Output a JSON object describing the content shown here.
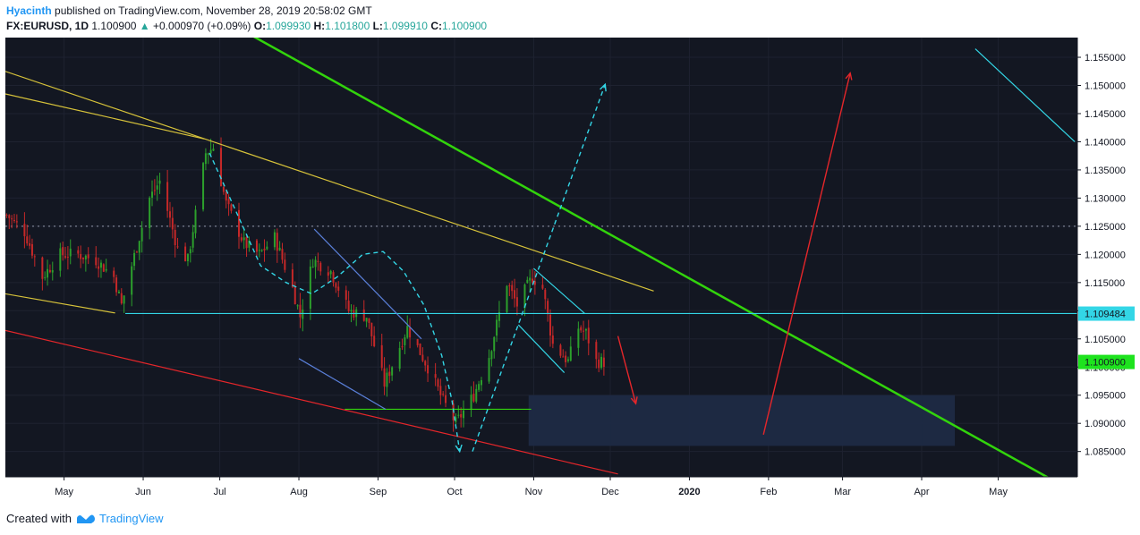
{
  "header": {
    "author": "Hyacinth",
    "published": "published on TradingView.com, November 28, 2019 20:58:02 GMT",
    "symbol": "FX:EURUSD, 1D",
    "last_price": "1.100900",
    "change_arrow": "▲",
    "change": "+0.000970 (+0.09%)",
    "o_label": "O:",
    "o_value": "1.099930",
    "h_label": "H:",
    "h_value": "1.101800",
    "l_label": "L:",
    "l_value": "1.099910",
    "c_label": "C:",
    "c_value": "1.100900"
  },
  "footer": {
    "created": "Created with",
    "brand": "TradingView",
    "logo_icon": "tradingview-logo-icon"
  },
  "colors": {
    "background": "#131722",
    "grid": "#1e2230",
    "bull": "#26a69a",
    "bear": "#ef5350",
    "bull_candle": "#2ca02c",
    "bear_candle": "#c62828",
    "green_trend": "#32d40c",
    "cyan": "#33d6e6",
    "yellow": "#d6c23a",
    "red": "#e5262a",
    "blue": "#5a7fd8",
    "zone": "#1d2a44",
    "current_price": "#1ee31e"
  },
  "chart_data": {
    "type": "candlestick",
    "symbol": "EURUSD",
    "timeframe": "1D",
    "ylim": [
      1.0805,
      1.1585
    ],
    "x_dates": [
      "2019-04-08",
      "2020-06-01"
    ],
    "y_ticks": [
      "1.155000",
      "1.150000",
      "1.145000",
      "1.140000",
      "1.135000",
      "1.130000",
      "1.125000",
      "1.120000",
      "1.115000",
      "1.110000",
      "1.105000",
      "1.100000",
      "1.095000",
      "1.090000",
      "1.085000"
    ],
    "x_ticks": [
      {
        "label": "May",
        "date": "2019-05-01"
      },
      {
        "label": "Jun",
        "date": "2019-06-01"
      },
      {
        "label": "Jul",
        "date": "2019-07-01"
      },
      {
        "label": "Aug",
        "date": "2019-08-01"
      },
      {
        "label": "Sep",
        "date": "2019-09-01"
      },
      {
        "label": "Oct",
        "date": "2019-10-01"
      },
      {
        "label": "Nov",
        "date": "2019-11-01"
      },
      {
        "label": "Dec",
        "date": "2019-12-01"
      },
      {
        "label": "2020",
        "date": "2020-01-01"
      },
      {
        "label": "Feb",
        "date": "2020-02-01"
      },
      {
        "label": "Mar",
        "date": "2020-03-01"
      },
      {
        "label": "Apr",
        "date": "2020-04-01"
      },
      {
        "label": "May",
        "date": "2020-05-01"
      }
    ],
    "price_path": [
      [
        "2019-04-08",
        1.127
      ],
      [
        "2019-04-15",
        1.124
      ],
      [
        "2019-04-22",
        1.116
      ],
      [
        "2019-04-29",
        1.12
      ],
      [
        "2019-05-06",
        1.12
      ],
      [
        "2019-05-13",
        1.119
      ],
      [
        "2019-05-20",
        1.116
      ],
      [
        "2019-05-23",
        1.111
      ],
      [
        "2019-05-27",
        1.118
      ],
      [
        "2019-06-03",
        1.13
      ],
      [
        "2019-06-07",
        1.133
      ],
      [
        "2019-06-14",
        1.121
      ],
      [
        "2019-06-18",
        1.119
      ],
      [
        "2019-06-25",
        1.138
      ],
      [
        "2019-06-28",
        1.139
      ],
      [
        "2019-07-03",
        1.129
      ],
      [
        "2019-07-10",
        1.122
      ],
      [
        "2019-07-16",
        1.12
      ],
      [
        "2019-07-22",
        1.123
      ],
      [
        "2019-07-29",
        1.114
      ],
      [
        "2019-08-01",
        1.109
      ],
      [
        "2019-08-06",
        1.119
      ],
      [
        "2019-08-13",
        1.117
      ],
      [
        "2019-08-20",
        1.11
      ],
      [
        "2019-08-27",
        1.109
      ],
      [
        "2019-09-03",
        1.097
      ],
      [
        "2019-09-12",
        1.107
      ],
      [
        "2019-09-20",
        1.1
      ],
      [
        "2019-09-26",
        1.094
      ],
      [
        "2019-10-01",
        1.09
      ],
      [
        "2019-10-08",
        1.095
      ],
      [
        "2019-10-14",
        1.102
      ],
      [
        "2019-10-21",
        1.115
      ],
      [
        "2019-10-25",
        1.111
      ],
      [
        "2019-10-31",
        1.116
      ],
      [
        "2019-11-04",
        1.114
      ],
      [
        "2019-11-08",
        1.104
      ],
      [
        "2019-11-14",
        1.101
      ],
      [
        "2019-11-18",
        1.107
      ],
      [
        "2019-11-21",
        1.106
      ],
      [
        "2019-11-25",
        1.101
      ],
      [
        "2019-11-28",
        1.1009
      ]
    ],
    "price_lines": [
      {
        "label": "1.109484",
        "price": 1.109484,
        "color": "#33d6e6"
      },
      {
        "label": "1.100900",
        "price": 1.1009,
        "color": "#1ee31e"
      }
    ],
    "dotted_level": 1.125,
    "drawings": [
      {
        "name": "green-trendline",
        "color": "#32d40c",
        "points": [
          [
            "2019-06-12",
            1.1668
          ],
          [
            "2020-05-22",
            1.08
          ]
        ]
      },
      {
        "name": "yellow-trendline-upper",
        "color": "#d6c23a",
        "points": [
          [
            "2019-04-08",
            1.1485
          ],
          [
            "2019-06-25",
            1.1405
          ]
        ]
      },
      {
        "name": "yellow-trendline-main",
        "color": "#d6c23a",
        "points": [
          [
            "2019-04-08",
            1.1525
          ],
          [
            "2019-12-18",
            1.1135
          ]
        ]
      },
      {
        "name": "yellow-support-line",
        "color": "#d6c23a",
        "points": [
          [
            "2019-04-08",
            1.113
          ],
          [
            "2019-05-21",
            1.1096
          ]
        ]
      },
      {
        "name": "red-channel-line",
        "color": "#e5262a",
        "points": [
          [
            "2019-04-08",
            1.1065
          ],
          [
            "2019-12-04",
            1.081
          ]
        ]
      },
      {
        "name": "cyan-channel-line",
        "color": "#33d6e6",
        "points": [
          [
            "2020-04-22",
            1.1565
          ],
          [
            "2020-05-31",
            1.14
          ]
        ]
      },
      {
        "name": "cyan-resistance-line",
        "color": "#33d6e6",
        "points": [
          [
            "2019-05-25",
            1.1095
          ],
          [
            "2020-06-01",
            1.1095
          ]
        ]
      },
      {
        "name": "green-support-line",
        "color": "#32d40c",
        "points": [
          [
            "2019-08-19",
            1.0925
          ],
          [
            "2019-10-31",
            1.0925
          ]
        ]
      },
      {
        "name": "blue-line-1",
        "color": "#5a7fd8",
        "points": [
          [
            "2019-08-07",
            1.1245
          ],
          [
            "2019-09-18",
            1.105
          ]
        ]
      },
      {
        "name": "blue-line-2",
        "color": "#5a7fd8",
        "points": [
          [
            "2019-08-01",
            1.1015
          ],
          [
            "2019-09-04",
            1.0925
          ]
        ]
      },
      {
        "name": "cyan-wedge-upper",
        "color": "#33d6e6",
        "points": [
          [
            "2019-11-01",
            1.1175
          ],
          [
            "2019-11-21",
            1.1095
          ]
        ]
      },
      {
        "name": "cyan-wedge-lower",
        "color": "#33d6e6",
        "points": [
          [
            "2019-10-26",
            1.1075
          ],
          [
            "2019-11-13",
            1.099
          ]
        ]
      }
    ],
    "projections": [
      {
        "name": "dashed-path-projection",
        "color": "#33d6e6",
        "style": "dashed",
        "points": [
          [
            "2019-06-27",
            1.138
          ],
          [
            "2019-07-07",
            1.128
          ],
          [
            "2019-07-17",
            1.118
          ],
          [
            "2019-07-27",
            1.115
          ],
          [
            "2019-08-06",
            1.113
          ],
          [
            "2019-08-16",
            1.116
          ],
          [
            "2019-08-26",
            1.12
          ],
          [
            "2019-09-03",
            1.1205
          ],
          [
            "2019-09-11",
            1.117
          ],
          [
            "2019-09-19",
            1.111
          ],
          [
            "2019-09-26",
            1.102
          ],
          [
            "2019-09-30",
            1.094
          ],
          [
            "2019-10-03",
            1.085
          ]
        ]
      },
      {
        "name": "dashed-bullish-projection",
        "color": "#33d6e6",
        "style": "dashed",
        "points": [
          [
            "2019-10-08",
            1.085
          ],
          [
            "2019-11-29",
            1.1502
          ]
        ]
      },
      {
        "name": "red-drop-arrow",
        "color": "#e5262a",
        "style": "solid",
        "points": [
          [
            "2019-12-04",
            1.1055
          ],
          [
            "2019-12-11",
            1.0935
          ]
        ]
      },
      {
        "name": "red-rally-arrow",
        "color": "#e5262a",
        "style": "solid",
        "points": [
          [
            "2020-01-30",
            1.088
          ],
          [
            "2020-03-04",
            1.1522
          ]
        ]
      }
    ],
    "zones": [
      {
        "name": "target-zone",
        "color": "#1d2a44",
        "from": "2019-10-30",
        "to": "2020-04-14",
        "high": 1.095,
        "low": 1.086
      }
    ],
    "grid": true,
    "legend": "none"
  }
}
